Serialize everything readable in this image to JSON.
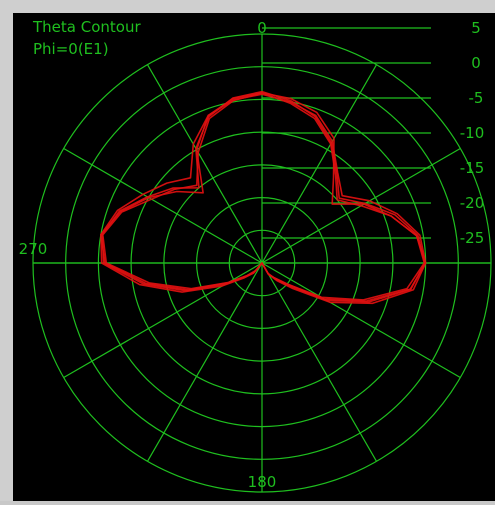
{
  "colors": {
    "grid": "#1fbf1f",
    "trace": "#e01010",
    "background": "#000000",
    "frame": "#cfcfcf"
  },
  "chart_data": {
    "type": "line",
    "projection": "polar",
    "title": "Theta Contour",
    "subtitle": "Phi=0(E1)",
    "angle_labels": [
      {
        "angle": 0,
        "text": "0"
      },
      {
        "angle": 270,
        "text": "270"
      },
      {
        "angle": 180,
        "text": "180"
      }
    ],
    "radial_ticks": [
      "5",
      "0",
      "-5",
      "-10",
      "-15",
      "-20",
      "-25"
    ],
    "r_range_db": [
      -30,
      5
    ],
    "series_angles_deg": [
      0,
      10,
      20,
      30,
      40,
      50,
      60,
      70,
      80,
      90,
      100,
      110,
      120,
      130,
      140,
      150,
      160,
      170,
      180,
      190,
      200,
      210,
      220,
      230,
      240,
      250,
      260,
      270,
      280,
      290,
      300,
      310,
      320,
      330,
      340,
      350
    ],
    "series": [
      {
        "values": [
          -4,
          -4.5,
          -5.5,
          -8,
          -13,
          -16,
          -12,
          -9,
          -6,
          -5,
          -7,
          -13,
          -19,
          -25,
          -27,
          -28,
          -30,
          -30,
          -30,
          -30,
          -30,
          -30,
          -28,
          -27,
          -24,
          -18,
          -12,
          -6,
          -5,
          -7,
          -10,
          -13,
          -16,
          -10,
          -6,
          -4.5
        ]
      },
      {
        "values": [
          -4.2,
          -5,
          -6,
          -8.5,
          -12,
          -14,
          -11,
          -8,
          -5.5,
          -5,
          -6.5,
          -12,
          -18,
          -24,
          -26.5,
          -28,
          -30,
          -30,
          -30,
          -30,
          -30,
          -30,
          -28,
          -26.5,
          -23,
          -17,
          -11,
          -5.5,
          -5,
          -6.5,
          -9,
          -11,
          -13,
          -9,
          -6,
          -4.7
        ]
      },
      {
        "values": [
          -4,
          -5.2,
          -6.5,
          -9,
          -12.5,
          -15,
          -12.5,
          -9,
          -6,
          -5.2,
          -7.5,
          -13.5,
          -19.5,
          -25,
          -27,
          -28,
          -30,
          -30,
          -30,
          -30,
          -30,
          -30,
          -28.5,
          -27,
          -24,
          -18.5,
          -12.5,
          -6.2,
          -5.3,
          -7.2,
          -10.5,
          -12.5,
          -14.5,
          -10.5,
          -6.5,
          -4.8
        ]
      },
      {
        "values": [
          -3.8,
          -4.8,
          -6.2,
          -8.8,
          -12.2,
          -14.6,
          -11.8,
          -8.4,
          -5.8,
          -5.1,
          -6.9,
          -12.6,
          -18.6,
          -24.6,
          -26.8,
          -28.2,
          -30,
          -30,
          -30,
          -30,
          -30,
          -30,
          -28.2,
          -26.8,
          -23.6,
          -17.6,
          -11.6,
          -5.8,
          -5.2,
          -6.8,
          -9.8,
          -12.2,
          -15,
          -9.8,
          -6.2,
          -4.4
        ]
      }
    ]
  }
}
